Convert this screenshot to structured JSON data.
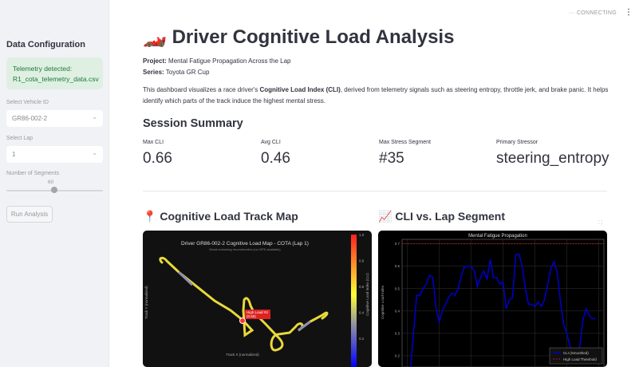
{
  "sidebar": {
    "title": "Data Configuration",
    "alert_line1": "Telemetry detected:",
    "alert_line2": "R1_cota_telemetry_data.csv",
    "vehicle_label": "Select Vehicle ID",
    "vehicle_value": "GR86-002-2",
    "lap_label": "Select Lap",
    "lap_value": "1",
    "segments_label": "Number of Segments",
    "segments_value": "60",
    "segments_range": [
      0,
      120
    ],
    "run_label": "Run Analysis"
  },
  "header": {
    "status": "CONNECTING",
    "status_icon": "ellipsis-icon",
    "menu_icon": "kebab-menu-icon"
  },
  "main": {
    "title_icon": "🏎️",
    "title": "Driver Cognitive Load Analysis",
    "project_label": "Project:",
    "project_value": "Mental Fatigue Propagation Across the Lap",
    "series_label": "Series:",
    "series_value": "Toyota GR Cup",
    "desc_pre": "This dashboard visualizes a race driver's ",
    "desc_bold": "Cognitive Load Index (CLI)",
    "desc_post": ", derived from telemetry signals such as steering entropy, throttle jerk, and brake panic. It helps identify which parts of the track induce the highest mental stress.",
    "summary_title": "Session Summary",
    "metrics": [
      {
        "label": "Max CLI",
        "value": "0.66"
      },
      {
        "label": "Avg CLI",
        "value": "0.46"
      },
      {
        "label": "Max Stress Segment",
        "value": "#35"
      },
      {
        "label": "Primary Stressor",
        "value": "steering_entropy"
      }
    ],
    "map_title_icon": "📍",
    "map_title": "Cognitive Load Track Map",
    "line_title_icon": "📈",
    "line_title": "CLI vs. Lap Segment"
  },
  "track_map": {
    "title": "Driver GR86-002-2 Cognitive Load Map - COTA (Lap 1)",
    "subtitle": "Dead-reckoning reconstruction (no GPS available)",
    "xlabel": "Track X (normalized)",
    "ylabel": "Track Y (normalized)",
    "colorbar_label": "Cognitive Load Index (CLI)",
    "colorbar_ticks": [
      "1.0",
      "0.8",
      "0.6",
      "0.4",
      "0.2"
    ],
    "annotation_line1": "High Load #3",
    "annotation_line2": "(0.66)",
    "colors": {
      "low": "#0000ff",
      "mid": "#ffff33",
      "high": "#ff2020"
    }
  },
  "chart_data": {
    "type": "line",
    "title": "Mental Fatigue Propagation",
    "ylabel": "Cognitive Load Index",
    "xlim": [
      0,
      60
    ],
    "ylim": [
      0.15,
      0.72
    ],
    "yticks": [
      "0.7",
      "0.6",
      "0.5",
      "0.4",
      "0.3",
      "0.2"
    ],
    "grid": true,
    "legend": "bottom-right",
    "series": [
      {
        "name": "CLI (Smoothed)",
        "color": "#0000cc",
        "values": [
          0.13,
          0.3,
          0.47,
          0.47,
          0.5,
          0.52,
          0.56,
          0.55,
          0.42,
          0.35,
          0.4,
          0.43,
          0.46,
          0.48,
          0.47,
          0.5,
          0.56,
          0.6,
          0.6,
          0.6,
          0.58,
          0.51,
          0.55,
          0.58,
          0.54,
          0.63,
          0.55,
          0.55,
          0.52,
          0.53,
          0.41,
          0.45,
          0.46,
          0.65,
          0.655,
          0.6,
          0.5,
          0.43,
          0.43,
          0.42,
          0.44,
          0.42,
          0.45,
          0.52,
          0.59,
          0.62,
          0.57,
          0.44,
          0.34,
          0.3,
          0.24,
          0.22,
          0.2,
          0.24,
          0.36,
          0.41,
          0.38,
          0.365,
          0.365
        ]
      }
    ],
    "threshold": {
      "name": "High Load Threshold",
      "value": 0.7,
      "color": "#cc2222"
    }
  }
}
